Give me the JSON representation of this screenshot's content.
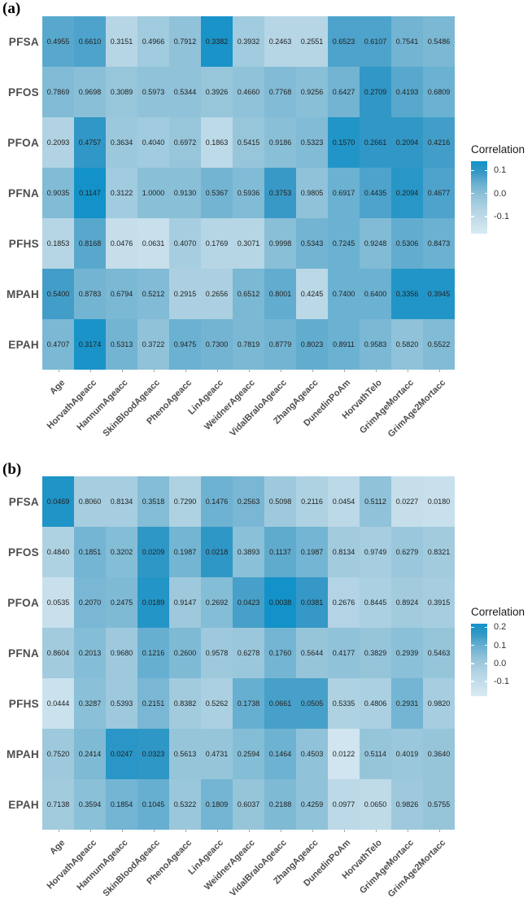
{
  "figure": {
    "background": "#ffffff"
  },
  "palette_stops": [
    {
      "t": 0.0,
      "color": "#d9eaf2"
    },
    {
      "t": 0.3,
      "color": "#b6d6e5"
    },
    {
      "t": 0.5,
      "color": "#96c5da"
    },
    {
      "t": 0.7,
      "color": "#67afd0"
    },
    {
      "t": 0.85,
      "color": "#3598c6"
    },
    {
      "t": 1.0,
      "color": "#1292c8"
    }
  ],
  "text_colors": {
    "cell": "#222222",
    "axis_label": "#4d4d4d",
    "legend_label": "#333333",
    "legend_title": "#1a1a1a"
  },
  "chart_data": [
    {
      "type": "heatmap",
      "panel_label": "(a)",
      "x_axis_labels": [
        "Age",
        "HorvathAgeacc",
        "HannumAgeacc",
        "SkinBloodAgeacc",
        "PhenoAgeacc",
        "LinAgeacc",
        "WeidnerAgeacc",
        "VidalBraloAgeacc",
        "ZhangAgeacc",
        "DunedinPoAm",
        "HorvathTelo",
        "GrimAgeMortacc",
        "GrimAge2Mortacc"
      ],
      "y_axis_labels": [
        "PFSA",
        "PFOS",
        "PFOA",
        "PFNA",
        "PFHS",
        "MPAH",
        "EPAH"
      ],
      "cell_text": [
        [
          "0.4955",
          "0.6610",
          "0.3151",
          "0.4966",
          "0.7912",
          "0.3382",
          "0.3932",
          "0.2463",
          "0.2551",
          "0.6523",
          "0.6107",
          "0.7541",
          "0.5486"
        ],
        [
          "0.7869",
          "0.9698",
          "0.3089",
          "0.5973",
          "0.5344",
          "0.3926",
          "0.4660",
          "0.7768",
          "0.9256",
          "0.6427",
          "0.2709",
          "0.4193",
          "0.6809"
        ],
        [
          "0.2093",
          "0.4757",
          "0.3634",
          "0.4040",
          "0.6972",
          "0.1863",
          "0.5415",
          "0.9186",
          "0.5323",
          "0.1570",
          "0.2661",
          "0.2094",
          "0.4216"
        ],
        [
          "0.9035",
          "0.1147",
          "0.3122",
          "1.0000",
          "0.9130",
          "0.5367",
          "0.5936",
          "0.3753",
          "0.9805",
          "0.6917",
          "0.4435",
          "0.2094",
          "0.4677"
        ],
        [
          "0.1853",
          "0.8168",
          "0.0476",
          "0.0631",
          "0.4070",
          "0.1769",
          "0.3071",
          "0.9998",
          "0.5343",
          "0.7245",
          "0.9248",
          "0.5306",
          "0.8473"
        ],
        [
          "0.5400",
          "0.8783",
          "0.6794",
          "0.5212",
          "0.2915",
          "0.2656",
          "0.6512",
          "0.8001",
          "0.4245",
          "0.7400",
          "0.6400",
          "0.3356",
          "0.3945"
        ],
        [
          "0.4707",
          "0.3174",
          "0.5313",
          "0.3722",
          "0.9475",
          "0.7300",
          "0.7819",
          "0.8779",
          "0.8023",
          "0.8911",
          "0.9583",
          "0.5820",
          "0.5522"
        ]
      ],
      "corr_estimate": [
        [
          0.06,
          0.07,
          -0.08,
          -0.04,
          -0.01,
          0.13,
          -0.04,
          -0.08,
          -0.08,
          0.07,
          0.07,
          0.03,
          0.02
        ],
        [
          0.01,
          0.0,
          -0.02,
          -0.01,
          -0.01,
          -0.02,
          -0.01,
          0.01,
          0.0,
          0.03,
          0.1,
          0.06,
          0.04
        ],
        [
          -0.07,
          0.1,
          -0.03,
          -0.04,
          -0.02,
          -0.1,
          -0.02,
          0.0,
          0.01,
          0.12,
          0.1,
          0.1,
          0.08
        ],
        [
          0.01,
          0.14,
          -0.04,
          0.0,
          0.0,
          0.03,
          0.01,
          0.09,
          -0.01,
          0.04,
          0.07,
          0.11,
          0.07
        ],
        [
          -0.08,
          0.06,
          -0.12,
          -0.13,
          -0.05,
          -0.08,
          -0.08,
          0.0,
          0.03,
          0.04,
          0.01,
          0.05,
          0.04
        ],
        [
          0.08,
          0.03,
          0.02,
          0.01,
          -0.06,
          -0.06,
          0.02,
          0.05,
          -0.09,
          0.04,
          0.04,
          0.12,
          0.12
        ],
        [
          0.02,
          0.13,
          0.03,
          -0.01,
          0.04,
          0.03,
          0.02,
          0.03,
          0.05,
          0.04,
          0.02,
          -0.01,
          0.01
        ]
      ],
      "legend": {
        "title": "Correlation",
        "tick_labels": [
          "0.1",
          "0.0",
          "-0.1"
        ],
        "tick_values": [
          0.1,
          0.0,
          -0.1
        ],
        "scale_domain": [
          -0.175,
          0.14
        ]
      }
    },
    {
      "type": "heatmap",
      "panel_label": "(b)",
      "x_axis_labels": [
        "Age",
        "HorvathAgeacc",
        "HannumAgeacc",
        "SkinBloodAgeacc",
        "PhenoAgeacc",
        "LinAgeacc",
        "WeidnerAgeacc",
        "VidalBraloAgeacc",
        "ZhangAgeacc",
        "DunedinPoAm",
        "HorvathTelo",
        "GrimAgeMortacc",
        "GrimAge2Mortacc"
      ],
      "y_axis_labels": [
        "PFSA",
        "PFOS",
        "PFOA",
        "PFNA",
        "PFHS",
        "MPAH",
        "EPAH"
      ],
      "cell_text": [
        [
          "0.0469",
          "0.8060",
          "0.8134",
          "0.3518",
          "0.7290",
          "0.1476",
          "0.2563",
          "0.5098",
          "0.2116",
          "0.0454",
          "0.5112",
          "0.0227",
          "0.0180"
        ],
        [
          "0.4840",
          "0.1851",
          "0.3202",
          "0.0209",
          "0.1987",
          "0.0218",
          "0.3893",
          "0.1137",
          "0.1987",
          "0.8134",
          "0.9749",
          "0.6279",
          "0.8321"
        ],
        [
          "0.0535",
          "0.2070",
          "0.2475",
          "0.0189",
          "0.9147",
          "0.2692",
          "0.0423",
          "0.0038",
          "0.0381",
          "0.2676",
          "0.8445",
          "0.8924",
          "0.3915"
        ],
        [
          "0.8604",
          "0.2013",
          "0.9680",
          "0.1216",
          "0.2600",
          "0.9578",
          "0.6278",
          "0.1760",
          "0.5644",
          "0.4177",
          "0.3829",
          "0.2939",
          "0.5463"
        ],
        [
          "0.0444",
          "0.3287",
          "0.5393",
          "0.2151",
          "0.8382",
          "0.5262",
          "0.1738",
          "0.0661",
          "0.0505",
          "0.5335",
          "0.4806",
          "0.2931",
          "0.9820"
        ],
        [
          "0.7520",
          "0.2414",
          "0.0247",
          "0.0323",
          "0.5613",
          "0.4731",
          "0.2594",
          "0.1464",
          "0.4503",
          "0.0122",
          "0.5114",
          "0.4019",
          "0.3640"
        ],
        [
          "0.7138",
          "0.3594",
          "0.1854",
          "0.1045",
          "0.5322",
          "0.1809",
          "0.6037",
          "0.2188",
          "0.4259",
          "0.0977",
          "0.0650",
          "0.9826",
          "0.5755"
        ]
      ],
      "corr_estimate": [
        [
          0.2,
          -0.02,
          -0.02,
          0.05,
          -0.04,
          0.09,
          0.07,
          0.0,
          -0.04,
          -0.08,
          0.03,
          -0.11,
          -0.12
        ],
        [
          -0.04,
          0.08,
          0.05,
          0.17,
          0.08,
          0.17,
          0.04,
          0.11,
          0.08,
          -0.01,
          -0.02,
          0.01,
          -0.01
        ],
        [
          -0.12,
          0.07,
          0.06,
          0.19,
          0.0,
          0.05,
          0.14,
          0.22,
          0.16,
          -0.05,
          -0.03,
          -0.01,
          -0.02
        ],
        [
          -0.01,
          0.05,
          0.0,
          0.1,
          0.06,
          0.0,
          0.01,
          0.08,
          0.02,
          0.03,
          0.02,
          0.04,
          0.02
        ],
        [
          -0.13,
          0.04,
          0.0,
          0.07,
          -0.01,
          -0.03,
          0.1,
          0.14,
          0.14,
          -0.04,
          -0.03,
          0.08,
          -0.02
        ],
        [
          0.0,
          0.06,
          0.18,
          0.17,
          0.02,
          0.02,
          0.05,
          0.09,
          0.03,
          -0.15,
          0.02,
          0.01,
          0.02
        ],
        [
          -0.01,
          0.04,
          0.08,
          0.1,
          0.01,
          0.08,
          0.02,
          0.06,
          0.03,
          -0.08,
          -0.09,
          0.0,
          0.02
        ]
      ],
      "legend": {
        "title": "Correlation",
        "tick_labels": [
          "0.2",
          "0.1",
          "0.0",
          "-0.1"
        ],
        "tick_values": [
          0.2,
          0.1,
          0.0,
          -0.1
        ],
        "scale_domain": [
          -0.18,
          0.22
        ]
      }
    }
  ]
}
